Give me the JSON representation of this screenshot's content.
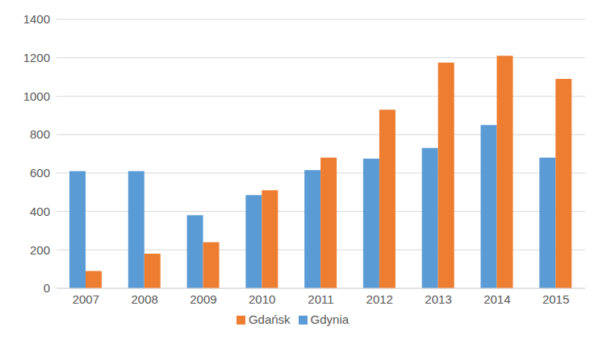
{
  "chart_data": {
    "type": "bar",
    "categories": [
      "2007",
      "2008",
      "2009",
      "2010",
      "2011",
      "2012",
      "2013",
      "2014",
      "2015"
    ],
    "series": [
      {
        "name": "Gdynia",
        "color": "#5b9bd5",
        "values": [
          610,
          610,
          380,
          485,
          615,
          675,
          730,
          850,
          680
        ]
      },
      {
        "name": "Gdańsk",
        "color": "#ed7d31",
        "values": [
          90,
          180,
          240,
          510,
          680,
          930,
          1175,
          1210,
          1090
        ]
      }
    ],
    "ylim": [
      0,
      1400
    ],
    "yticks": [
      0,
      200,
      400,
      600,
      800,
      1000,
      1200,
      1400
    ],
    "grid": true,
    "legend": "bottom"
  }
}
